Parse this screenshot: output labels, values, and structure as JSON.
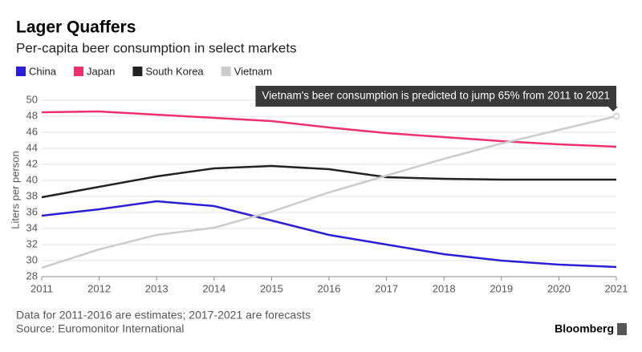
{
  "chart_data": {
    "type": "line",
    "title": "Lager Quaffers",
    "subtitle": "Per-capita beer consumption in select markets",
    "ylabel": "Liters per person",
    "x": [
      2011,
      2012,
      2013,
      2014,
      2015,
      2016,
      2017,
      2018,
      2019,
      2020,
      2021
    ],
    "xlim": [
      2011,
      2021
    ],
    "xticks": [
      2011,
      2012,
      2013,
      2014,
      2015,
      2016,
      2017,
      2018,
      2019,
      2020,
      2021
    ],
    "ylim": [
      28,
      50
    ],
    "yticks": [
      28,
      30,
      32,
      34,
      36,
      38,
      40,
      42,
      44,
      46,
      48,
      50
    ],
    "grid": true,
    "series": [
      {
        "name": "China",
        "color": "#2a1fd6",
        "values": [
          35.6,
          36.4,
          37.4,
          36.8,
          35.0,
          33.2,
          32.0,
          30.8,
          30.0,
          29.5,
          29.2
        ]
      },
      {
        "name": "Japan",
        "color": "#f0306d",
        "values": [
          48.5,
          48.6,
          48.2,
          47.8,
          47.4,
          46.6,
          45.9,
          45.4,
          44.9,
          44.5,
          44.2
        ]
      },
      {
        "name": "South Korea",
        "color": "#222222",
        "values": [
          37.9,
          39.2,
          40.5,
          41.5,
          41.8,
          41.4,
          40.4,
          40.2,
          40.1,
          40.1,
          40.1
        ]
      },
      {
        "name": "Vietnam",
        "color": "#cccccc",
        "values": [
          29.1,
          31.4,
          33.2,
          34.1,
          36.1,
          38.5,
          40.6,
          42.7,
          44.6,
          46.3,
          48.0
        ]
      }
    ],
    "annotation": "Vietnam's beer consumption is predicted to jump 65% from 2011 to 2021",
    "note": "Data for 2011-2016 are estimates; 2017-2021 are forecasts",
    "source": "Source: Euromonitor International",
    "brand": "Bloomberg"
  }
}
